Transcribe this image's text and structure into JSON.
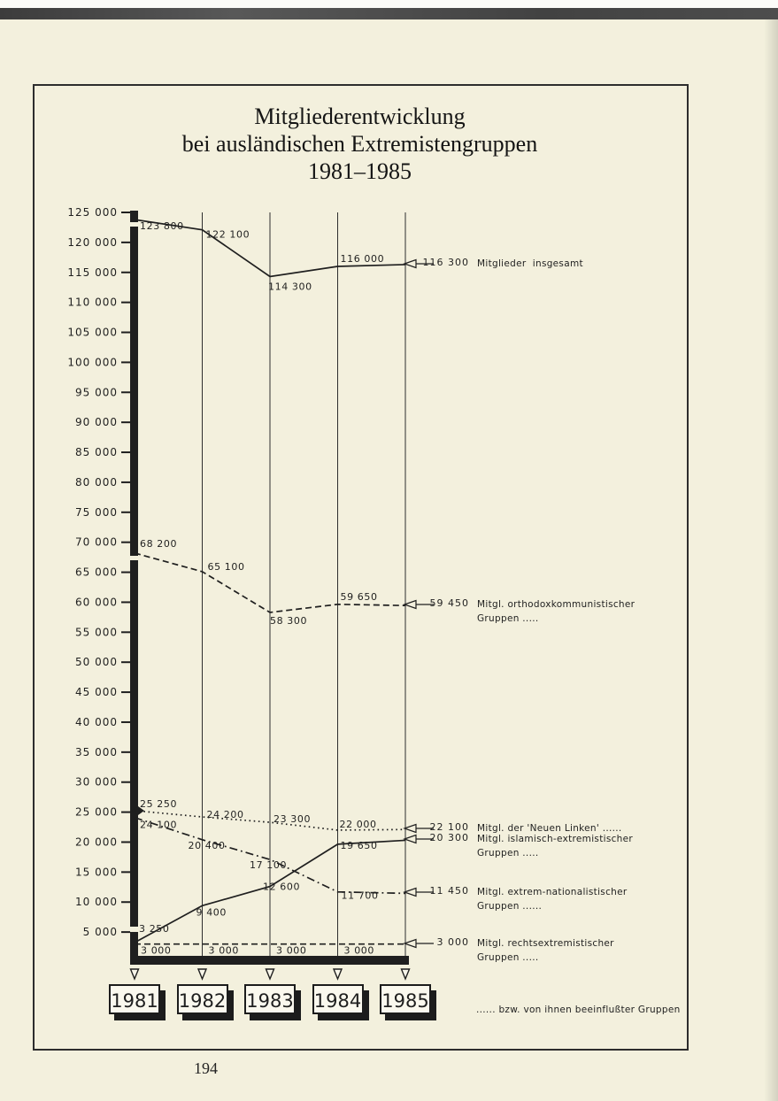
{
  "page": {
    "number": "194",
    "paper_color": "#f3f0dd",
    "ink_color": "#1f1f1f"
  },
  "title": {
    "line1": "Mitgliederentwicklung",
    "line2": "bei ausländischen Extremistengruppen",
    "line3": "1981–1985"
  },
  "footnote": "...... bzw. von ihnen beeinflußter Gruppen",
  "chart_data": {
    "type": "line",
    "title": "Mitgliederentwicklung bei ausländischen Extremistengruppen 1981–1985",
    "x_categories": [
      "1981",
      "1982",
      "1983",
      "1984",
      "1985"
    ],
    "xlabel": "",
    "ylabel": "",
    "ylim": [
      0,
      125000
    ],
    "ytick_range": [
      5000,
      125000
    ],
    "ytick_step": 5000,
    "ytick_label_format": "space-grouped thousands, e.g. 125 000",
    "grid": "vertical year lines only",
    "legend_position": "right-side arrow annotations",
    "series": [
      {
        "name": "Mitglieder insgesamt",
        "line_style": "solid",
        "values": [
          123800,
          122100,
          114300,
          116000,
          116300
        ],
        "point_labels": [
          {
            "i": 0,
            "text": "123 800",
            "dx": 6,
            "dy": 11
          },
          {
            "i": 1,
            "text": "122 100",
            "dx": 4,
            "dy": 9
          },
          {
            "i": 2,
            "text": "114 300",
            "dx": -2,
            "dy": 15
          },
          {
            "i": 3,
            "text": "116 000",
            "dx": 3,
            "dy": -5
          }
        ],
        "annotation_value": "116 300",
        "annotation_label": [
          "Mitglieder  insgesamt"
        ]
      },
      {
        "name": "Mitgl. orthodoxkommunistischer Gruppen",
        "line_style": "dashed",
        "values": [
          68200,
          65100,
          58300,
          59650,
          59450
        ],
        "point_labels": [
          {
            "i": 0,
            "text": "68 200",
            "dx": 6,
            "dy": -7
          },
          {
            "i": 1,
            "text": "65 100",
            "dx": 6,
            "dy": -2
          },
          {
            "i": 2,
            "text": "58 300",
            "dx": 0,
            "dy": 13
          },
          {
            "i": 3,
            "text": "59 650",
            "dx": 3,
            "dy": -5
          }
        ],
        "annotation_value": "59 450",
        "annotation_label": [
          "Mitgl. orthodoxkommunistischer",
          "Gruppen ....."
        ]
      },
      {
        "name": "Mitgl. der 'Neuen Linken'",
        "line_style": "dotted",
        "values": [
          25250,
          24200,
          23300,
          22000,
          22100
        ],
        "point_labels": [
          {
            "i": 0,
            "text": "25 250",
            "dx": 6,
            "dy": -4
          },
          {
            "i": 1,
            "text": "24 200",
            "dx": 5,
            "dy": 1
          },
          {
            "i": 2,
            "text": "23 300",
            "dx": 4,
            "dy": 0
          },
          {
            "i": 3,
            "text": "22 000",
            "dx": 2,
            "dy": -3
          }
        ],
        "annotation_value": "22 100",
        "annotation_label": [
          "Mitgl. der 'Neuen Linken' ......"
        ]
      },
      {
        "name": "Mitgl. islamisch-extremistischer Gruppen",
        "line_style": "solid",
        "values": [
          3250,
          9400,
          12600,
          19650,
          20300
        ],
        "point_labels": [
          {
            "i": 0,
            "text": "3 250",
            "dx": 5,
            "dy": -12
          },
          {
            "i": 1,
            "text": "9 400",
            "dx": -7,
            "dy": 11
          },
          {
            "i": 2,
            "text": "12 600",
            "dx": -8,
            "dy": 4
          },
          {
            "i": 3,
            "text": "19 650",
            "dx": 3,
            "dy": 5
          }
        ],
        "annotation_value": "20 300",
        "annotation_label": [
          "Mitgl. islamisch-extremistischer",
          "Gruppen ....."
        ]
      },
      {
        "name": "Mitgl. extrem-nationalistischer Gruppen",
        "line_style": "dashdot",
        "values": [
          24100,
          20400,
          17100,
          11700,
          11450
        ],
        "point_labels": [
          {
            "i": 0,
            "text": "24 100",
            "dx": 6,
            "dy": 12
          },
          {
            "i": 1,
            "text": "20 400",
            "dx": -16,
            "dy": 10
          },
          {
            "i": 2,
            "text": "17 100",
            "dx": -23,
            "dy": 10
          },
          {
            "i": 3,
            "text": "11 700",
            "dx": 4,
            "dy": 8
          }
        ],
        "annotation_value": "11 450",
        "annotation_label": [
          "Mitgl. extrem-nationalistischer",
          "Gruppen ......"
        ]
      },
      {
        "name": "Mitgl. rechtsextremistischer Gruppen",
        "line_style": "dashed",
        "values": [
          3000,
          3000,
          3000,
          3000,
          3000
        ],
        "point_labels": [
          {
            "i": 0,
            "text": "3 000",
            "dx": 7,
            "dy": 11
          },
          {
            "i": 1,
            "text": "3 000",
            "dx": 7,
            "dy": 11
          },
          {
            "i": 2,
            "text": "3 000",
            "dx": 7,
            "dy": 11
          },
          {
            "i": 3,
            "text": "3 000",
            "dx": 7,
            "dy": 11
          }
        ],
        "annotation_value": "3 000",
        "annotation_label": [
          "Mitgl. rechtsextremistischer",
          "Gruppen ....."
        ]
      }
    ]
  }
}
